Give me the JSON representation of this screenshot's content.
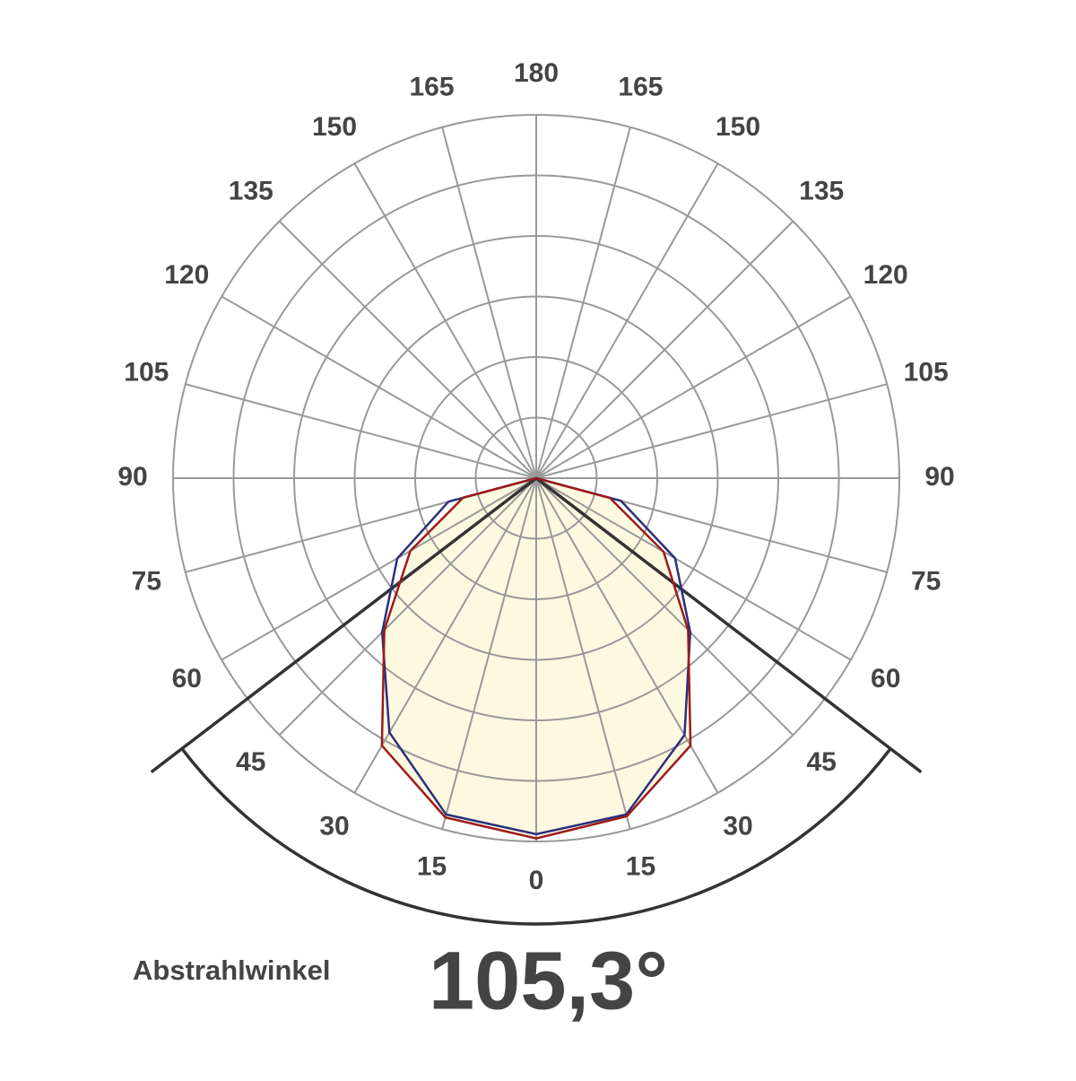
{
  "chart_data": {
    "type": "polar",
    "theta_ticks": [
      0,
      15,
      30,
      45,
      60,
      75,
      90,
      105,
      120,
      135,
      150,
      165,
      180
    ],
    "rlim": [
      0,
      6
    ],
    "rticks": [
      1,
      2,
      3,
      4,
      5,
      6
    ],
    "grid": true,
    "fill_color": "#fdf9e1",
    "theta": [
      -90,
      -75,
      -60,
      -45,
      -30,
      -15,
      0,
      15,
      30,
      45,
      60,
      75,
      90
    ],
    "series": [
      {
        "color": "#2b2f7a",
        "values": [
          0,
          1.5,
          2.65,
          3.6,
          4.85,
          5.75,
          5.88,
          5.75,
          4.9,
          3.6,
          2.65,
          1.45,
          0
        ]
      },
      {
        "color": "#9b1a1a",
        "values": [
          0,
          1.25,
          2.4,
          3.55,
          5.1,
          5.8,
          5.95,
          5.78,
          5.1,
          3.55,
          2.43,
          1.26,
          0
        ]
      }
    ],
    "beam": {
      "label": "Abstrahlwinkel",
      "value": 105.3,
      "value_label": "105,3°"
    }
  }
}
